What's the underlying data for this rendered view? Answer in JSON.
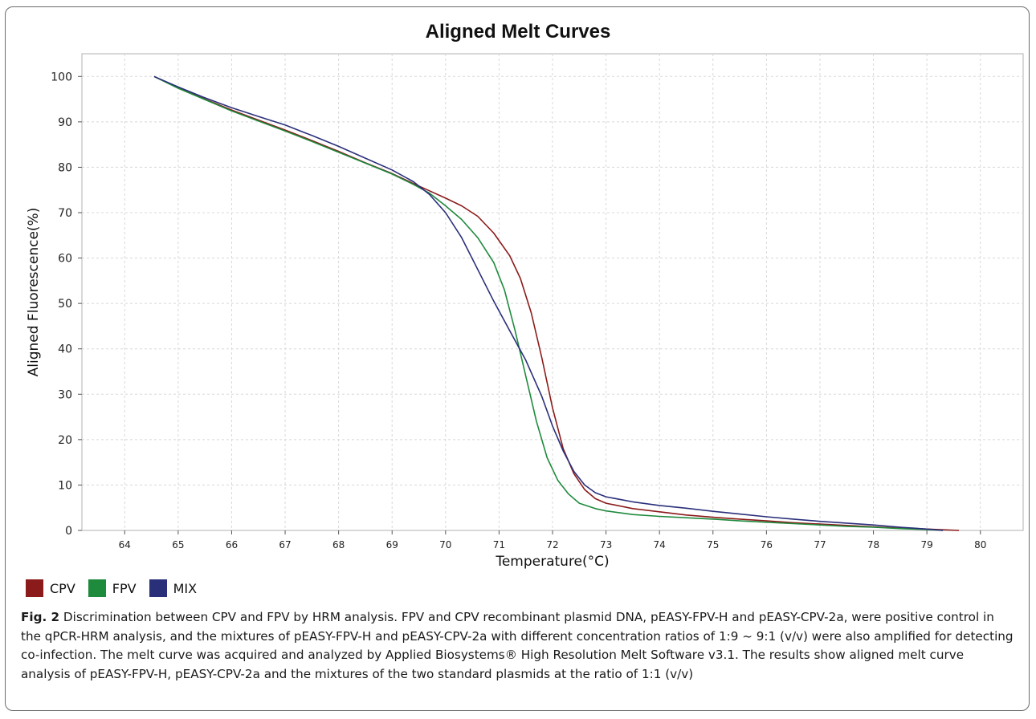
{
  "chart_data": {
    "type": "line",
    "title": "Aligned Melt Curves",
    "xlabel": "Temperature(°C)",
    "ylabel": "Aligned Fluorescence(%)",
    "xlim": [
      63.2,
      80.8
    ],
    "ylim": [
      0,
      105
    ],
    "xticks": [
      64,
      65,
      66,
      67,
      68,
      69,
      70,
      71,
      72,
      73,
      74,
      75,
      76,
      77,
      78,
      79,
      80
    ],
    "yticks": [
      0,
      10,
      20,
      30,
      40,
      50,
      60,
      70,
      80,
      90,
      100
    ],
    "grid": true,
    "legend_position": "bottom-left",
    "series": [
      {
        "name": "CPV",
        "color": "#8b1a1a",
        "points": [
          [
            64.55,
            100
          ],
          [
            65,
            97.5
          ],
          [
            65.5,
            95
          ],
          [
            66,
            92.6
          ],
          [
            66.5,
            90.4
          ],
          [
            67,
            88.2
          ],
          [
            67.5,
            85.9
          ],
          [
            68,
            83.5
          ],
          [
            68.5,
            81
          ],
          [
            69,
            78.6
          ],
          [
            69.4,
            76.4
          ],
          [
            69.7,
            74.8
          ],
          [
            70,
            73.2
          ],
          [
            70.3,
            71.5
          ],
          [
            70.6,
            69.2
          ],
          [
            70.9,
            65.5
          ],
          [
            71.2,
            60.5
          ],
          [
            71.4,
            55.5
          ],
          [
            71.6,
            48
          ],
          [
            71.8,
            38
          ],
          [
            72,
            27
          ],
          [
            72.2,
            18
          ],
          [
            72.4,
            12.5
          ],
          [
            72.6,
            9
          ],
          [
            72.8,
            7
          ],
          [
            73,
            6
          ],
          [
            73.5,
            4.8
          ],
          [
            74,
            4.1
          ],
          [
            74.5,
            3.4
          ],
          [
            75,
            2.9
          ],
          [
            75.5,
            2.5
          ],
          [
            76,
            2.1
          ],
          [
            76.5,
            1.7
          ],
          [
            77,
            1.4
          ],
          [
            77.5,
            1.1
          ],
          [
            78,
            0.8
          ],
          [
            78.5,
            0.5
          ],
          [
            79,
            0.3
          ],
          [
            79.6,
            0
          ]
        ]
      },
      {
        "name": "FPV",
        "color": "#1e8a3c",
        "points": [
          [
            64.55,
            100
          ],
          [
            65,
            97.4
          ],
          [
            65.5,
            94.9
          ],
          [
            66,
            92.4
          ],
          [
            66.5,
            90.2
          ],
          [
            67,
            88
          ],
          [
            67.5,
            85.7
          ],
          [
            68,
            83.3
          ],
          [
            68.5,
            80.9
          ],
          [
            69,
            78.5
          ],
          [
            69.4,
            76.2
          ],
          [
            69.7,
            74.3
          ],
          [
            70,
            71.5
          ],
          [
            70.3,
            68.5
          ],
          [
            70.6,
            64.5
          ],
          [
            70.9,
            59
          ],
          [
            71.1,
            53
          ],
          [
            71.3,
            44
          ],
          [
            71.5,
            34
          ],
          [
            71.7,
            24
          ],
          [
            71.9,
            16
          ],
          [
            72.1,
            11
          ],
          [
            72.3,
            8
          ],
          [
            72.5,
            6
          ],
          [
            72.8,
            4.8
          ],
          [
            73,
            4.3
          ],
          [
            73.5,
            3.5
          ],
          [
            74,
            3.1
          ],
          [
            74.5,
            2.8
          ],
          [
            75,
            2.5
          ],
          [
            75.5,
            2.1
          ],
          [
            76,
            1.8
          ],
          [
            76.5,
            1.5
          ],
          [
            77,
            1.2
          ],
          [
            77.5,
            0.9
          ],
          [
            78,
            0.7
          ],
          [
            78.5,
            0.4
          ],
          [
            79,
            0.2
          ],
          [
            79.3,
            0
          ]
        ]
      },
      {
        "name": "MIX",
        "color": "#2a2f7a",
        "points": [
          [
            64.55,
            100
          ],
          [
            65,
            97.7
          ],
          [
            65.5,
            95.3
          ],
          [
            66,
            93.1
          ],
          [
            66.5,
            91.2
          ],
          [
            67,
            89.3
          ],
          [
            67.5,
            87
          ],
          [
            68,
            84.6
          ],
          [
            68.5,
            82
          ],
          [
            69,
            79.4
          ],
          [
            69.4,
            76.8
          ],
          [
            69.7,
            74
          ],
          [
            70,
            70
          ],
          [
            70.3,
            64.5
          ],
          [
            70.6,
            57.5
          ],
          [
            70.9,
            50.5
          ],
          [
            71.2,
            44
          ],
          [
            71.5,
            37.5
          ],
          [
            71.8,
            29.5
          ],
          [
            72,
            23
          ],
          [
            72.2,
            17.5
          ],
          [
            72.4,
            13
          ],
          [
            72.6,
            10
          ],
          [
            72.8,
            8.3
          ],
          [
            73,
            7.4
          ],
          [
            73.5,
            6.3
          ],
          [
            74,
            5.5
          ],
          [
            74.5,
            4.9
          ],
          [
            75,
            4.2
          ],
          [
            75.5,
            3.6
          ],
          [
            76,
            3
          ],
          [
            76.5,
            2.5
          ],
          [
            77,
            2
          ],
          [
            77.5,
            1.6
          ],
          [
            78,
            1.2
          ],
          [
            78.5,
            0.7
          ],
          [
            79,
            0.3
          ],
          [
            79.3,
            0
          ]
        ]
      }
    ]
  },
  "caption": {
    "label": "Fig. 2",
    "text": " Discrimination between CPV and FPV by HRM analysis. FPV and CPV recombinant plasmid DNA, pEASY-FPV-H and pEASY-CPV-2a, were positive control in the qPCR-HRM analysis, and the mixtures of pEASY-FPV-H and pEASY-CPV-2a with different concentration ratios of 1:9 ~ 9:1 (v/v) were also amplified for detecting co-infection. The melt curve was acquired and analyzed by Applied Biosystems® High Resolution Melt Software v3.1. The results show aligned melt curve analysis of pEASY-FPV-H, pEASY-CPV-2a and the mixtures of the two standard plasmids at the ratio of 1:1 (v/v)"
  }
}
